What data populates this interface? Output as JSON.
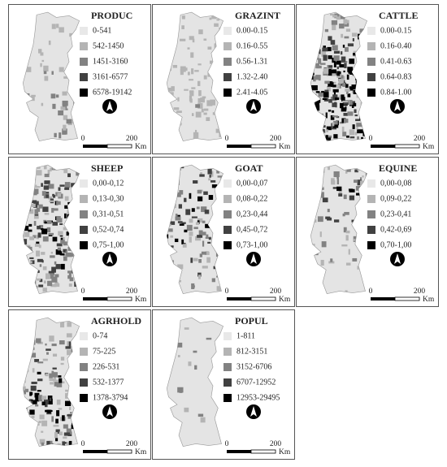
{
  "panels": [
    {
      "title": "PRODUC",
      "legend": [
        "0-541",
        "542-1450",
        "1451-3160",
        "3161-6577",
        "6578-19142"
      ],
      "scale": [
        "0",
        "200",
        "Km"
      ]
    },
    {
      "title": "GRAZINT",
      "legend": [
        "0.00-0.15",
        "0.16-0.55",
        "0.56-1.31",
        "1.32-2.40",
        "2.41-4.05"
      ],
      "scale": [
        "0",
        "200",
        "Km"
      ]
    },
    {
      "title": "CATTLE",
      "legend": [
        "0.00-0.15",
        "0.16-0.40",
        "0.41-0.63",
        "0.64-0.83",
        "0.84-1.00"
      ],
      "scale": [
        "0",
        "200",
        "Km"
      ]
    },
    {
      "title": "SHEEP",
      "legend": [
        "0,00-0,12",
        "0,13-0,30",
        "0,31-0,51",
        "0,52-0,74",
        "0,75-1,00"
      ],
      "scale": [
        "0",
        "200",
        "Km"
      ]
    },
    {
      "title": "GOAT",
      "legend": [
        "0,00-0,07",
        "0,08-0,22",
        "0,23-0,44",
        "0,45-0,72",
        "0,73-1,00"
      ],
      "scale": [
        "0",
        "200",
        "Km"
      ]
    },
    {
      "title": "EQUINE",
      "legend": [
        "0,00-0,08",
        "0,09-0,22",
        "0,23-0,41",
        "0,42-0,69",
        "0,70-1,00"
      ],
      "scale": [
        "0",
        "200",
        "Km"
      ]
    },
    {
      "title": "AGRHOLD",
      "legend": [
        "0-74",
        "75-225",
        "226-531",
        "532-1377",
        "1378-3794"
      ],
      "scale": [
        "0",
        "200",
        "Km"
      ]
    },
    {
      "title": "POPUL",
      "legend": [
        "1-811",
        "812-3151",
        "3152-6706",
        "6707-12952",
        "12953-29495"
      ],
      "scale": [
        "0",
        "200",
        "Km"
      ]
    }
  ]
}
